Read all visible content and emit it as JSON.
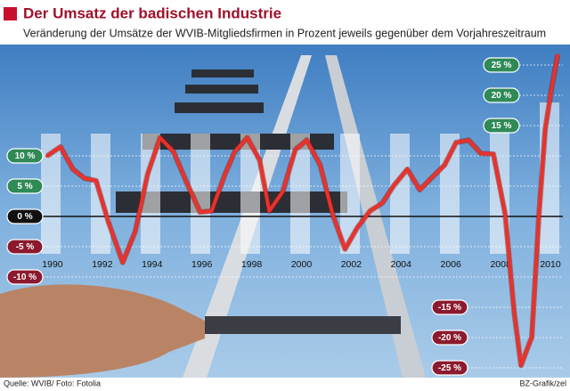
{
  "chart_data": {
    "type": "line",
    "title": "Der Umsatz der badischen Industrie",
    "subtitle": "Veränderung der Umsätze der WVIB-Mitgliedsfirmen in Prozent jeweils gegenüber dem Vorjahreszeitraum",
    "source": "Quelle: WVIB/ Foto: Fotolia",
    "credit": "BZ-Grafik/zel",
    "color": "#e8322b",
    "x": [
      1989.79,
      1990.32,
      1990.82,
      1991.29,
      1991.75,
      1992.25,
      1992.82,
      1993.32,
      1993.82,
      1994.32,
      1994.86,
      1995.39,
      1995.93,
      1996.39,
      1996.93,
      1997.32,
      1997.82,
      1998.32,
      1998.71,
      1999.25,
      1999.75,
      2000.21,
      2000.75,
      2001.25,
      2001.75,
      2002.25,
      2002.75,
      2003.25,
      2003.71,
      2004.25,
      2004.75,
      2005.21,
      2005.75,
      2006.21,
      2006.71,
      2007.21,
      2007.71,
      2008.18,
      2008.54,
      2008.82,
      2009.25,
      2009.54,
      2009.79,
      2010.04,
      2010.29
    ],
    "values": [
      10,
      11.5,
      7.8,
      6.3,
      5.9,
      -1,
      -7.6,
      -2.5,
      7,
      13,
      10.7,
      5.6,
      0.7,
      0.9,
      7,
      10.7,
      13,
      9.3,
      0.9,
      4.1,
      11,
      12.6,
      8.5,
      0.4,
      -5.4,
      -1.8,
      0.9,
      2.2,
      5.1,
      7.8,
      4.4,
      6.3,
      8.5,
      12.2,
      12.6,
      10.4,
      10.3,
      0.4,
      -15.7,
      -24.6,
      -19.9,
      0.4,
      14.4,
      21,
      26.6
    ],
    "xlim": [
      1989.5,
      2010.5
    ],
    "xticks": [
      1990,
      1992,
      1994,
      1996,
      1998,
      2000,
      2002,
      2004,
      2006,
      2008,
      2010
    ],
    "ylim": [
      -26,
      27
    ],
    "yticks": [
      {
        "value": 25,
        "label": "25 %"
      },
      {
        "value": 20,
        "label": "20 %"
      },
      {
        "value": 15,
        "label": "15 %"
      },
      {
        "value": 10,
        "label": "10 %"
      },
      {
        "value": 5,
        "label": "5 %"
      },
      {
        "value": 0,
        "label": "0 %"
      },
      {
        "value": -5,
        "label": "-5 %"
      },
      {
        "value": -10,
        "label": "-10 %"
      },
      {
        "value": -15,
        "label": "-15 %"
      },
      {
        "value": -20,
        "label": "-20 %"
      },
      {
        "value": -25,
        "label": "-25 %"
      }
    ],
    "grid": true
  }
}
